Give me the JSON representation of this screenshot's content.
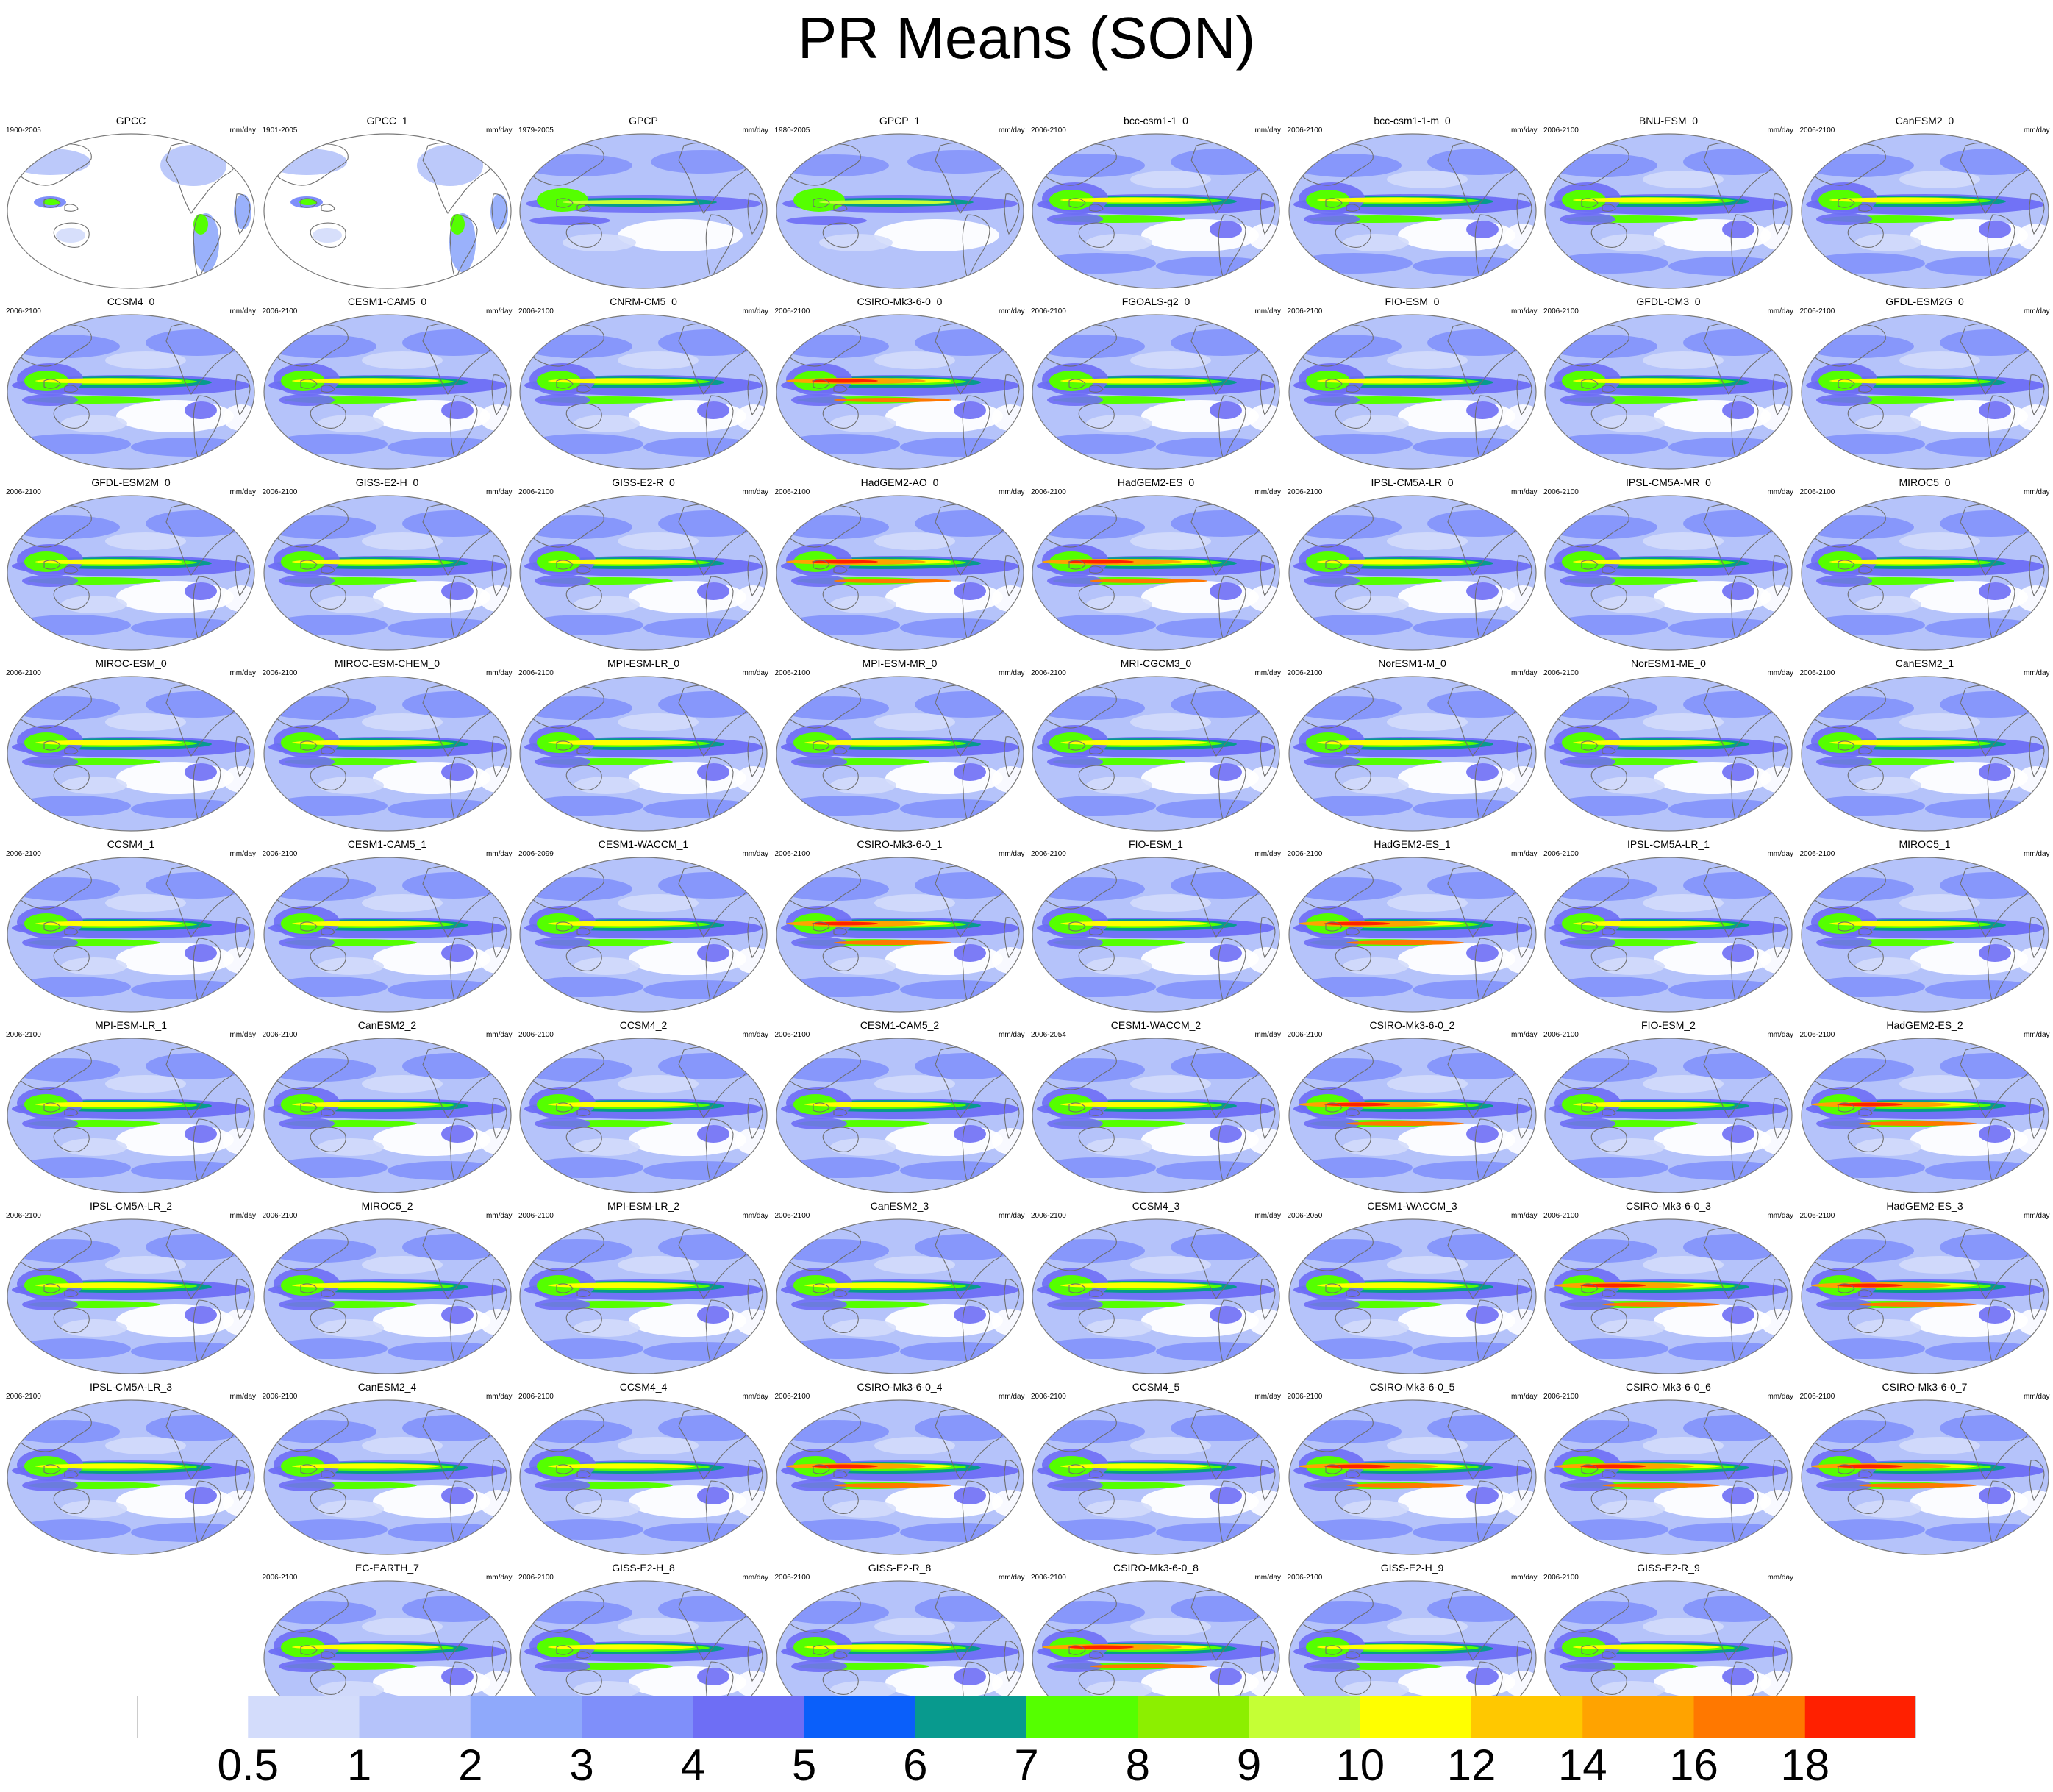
{
  "title": "PR Means (SON)",
  "units": "mm/day",
  "colors": {
    "ocean_base": "#bfcdfb",
    "coast": "#6e6e6e",
    "outline": "#7a7a7a"
  },
  "panels": [
    {
      "name": "GPCC",
      "years": "1900-2005",
      "style": "obs_land"
    },
    {
      "name": "GPCC_1",
      "years": "1901-2005",
      "style": "obs_land"
    },
    {
      "name": "GPCP",
      "years": "1979-2005",
      "style": "obs"
    },
    {
      "name": "GPCP_1",
      "years": "1980-2005",
      "style": "obs"
    },
    {
      "name": "bcc-csm1-1_0",
      "years": "2006-2100",
      "style": "model"
    },
    {
      "name": "bcc-csm1-1-m_0",
      "years": "2006-2100",
      "style": "model"
    },
    {
      "name": "BNU-ESM_0",
      "years": "2006-2100",
      "style": "model"
    },
    {
      "name": "CanESM2_0",
      "years": "2006-2100",
      "style": "model"
    },
    {
      "name": "CCSM4_0",
      "years": "2006-2100",
      "style": "model"
    },
    {
      "name": "CESM1-CAM5_0",
      "years": "2006-2100",
      "style": "model"
    },
    {
      "name": "CNRM-CM5_0",
      "years": "2006-2100",
      "style": "model"
    },
    {
      "name": "CSIRO-Mk3-6-0_0",
      "years": "2006-2100",
      "style": "wet"
    },
    {
      "name": "FGOALS-g2_0",
      "years": "2006-2100",
      "style": "model"
    },
    {
      "name": "FIO-ESM_0",
      "years": "2006-2100",
      "style": "model"
    },
    {
      "name": "GFDL-CM3_0",
      "years": "2006-2100",
      "style": "model"
    },
    {
      "name": "GFDL-ESM2G_0",
      "years": "2006-2100",
      "style": "model"
    },
    {
      "name": "GFDL-ESM2M_0",
      "years": "2006-2100",
      "style": "model"
    },
    {
      "name": "GISS-E2-H_0",
      "years": "2006-2100",
      "style": "model"
    },
    {
      "name": "GISS-E2-R_0",
      "years": "2006-2100",
      "style": "model"
    },
    {
      "name": "HadGEM2-AO_0",
      "years": "2006-2100",
      "style": "wet"
    },
    {
      "name": "HadGEM2-ES_0",
      "years": "2006-2100",
      "style": "wet"
    },
    {
      "name": "IPSL-CM5A-LR_0",
      "years": "2006-2100",
      "style": "model"
    },
    {
      "name": "IPSL-CM5A-MR_0",
      "years": "2006-2100",
      "style": "model"
    },
    {
      "name": "MIROC5_0",
      "years": "2006-2100",
      "style": "model"
    },
    {
      "name": "MIROC-ESM_0",
      "years": "2006-2100",
      "style": "model"
    },
    {
      "name": "MIROC-ESM-CHEM_0",
      "years": "2006-2100",
      "style": "model"
    },
    {
      "name": "MPI-ESM-LR_0",
      "years": "2006-2100",
      "style": "model"
    },
    {
      "name": "MPI-ESM-MR_0",
      "years": "2006-2100",
      "style": "model"
    },
    {
      "name": "MRI-CGCM3_0",
      "years": "2006-2100",
      "style": "model"
    },
    {
      "name": "NorESM1-M_0",
      "years": "2006-2100",
      "style": "model"
    },
    {
      "name": "NorESM1-ME_0",
      "years": "2006-2100",
      "style": "model"
    },
    {
      "name": "CanESM2_1",
      "years": "2006-2100",
      "style": "model"
    },
    {
      "name": "CCSM4_1",
      "years": "2006-2100",
      "style": "model"
    },
    {
      "name": "CESM1-CAM5_1",
      "years": "2006-2100",
      "style": "model"
    },
    {
      "name": "CESM1-WACCM_1",
      "years": "2006-2099",
      "style": "model"
    },
    {
      "name": "CSIRO-Mk3-6-0_1",
      "years": "2006-2100",
      "style": "wet"
    },
    {
      "name": "FIO-ESM_1",
      "years": "2006-2100",
      "style": "model"
    },
    {
      "name": "HadGEM2-ES_1",
      "years": "2006-2100",
      "style": "wet"
    },
    {
      "name": "IPSL-CM5A-LR_1",
      "years": "2006-2100",
      "style": "model"
    },
    {
      "name": "MIROC5_1",
      "years": "2006-2100",
      "style": "model"
    },
    {
      "name": "MPI-ESM-LR_1",
      "years": "2006-2100",
      "style": "model"
    },
    {
      "name": "CanESM2_2",
      "years": "2006-2100",
      "style": "model"
    },
    {
      "name": "CCSM4_2",
      "years": "2006-2100",
      "style": "model"
    },
    {
      "name": "CESM1-CAM5_2",
      "years": "2006-2100",
      "style": "model"
    },
    {
      "name": "CESM1-WACCM_2",
      "years": "2006-2054",
      "style": "model"
    },
    {
      "name": "CSIRO-Mk3-6-0_2",
      "years": "2006-2100",
      "style": "wet"
    },
    {
      "name": "FIO-ESM_2",
      "years": "2006-2100",
      "style": "model"
    },
    {
      "name": "HadGEM2-ES_2",
      "years": "2006-2100",
      "style": "wet"
    },
    {
      "name": "IPSL-CM5A-LR_2",
      "years": "2006-2100",
      "style": "model"
    },
    {
      "name": "MIROC5_2",
      "years": "2006-2100",
      "style": "model"
    },
    {
      "name": "MPI-ESM-LR_2",
      "years": "2006-2100",
      "style": "model"
    },
    {
      "name": "CanESM2_3",
      "years": "2006-2100",
      "style": "model"
    },
    {
      "name": "CCSM4_3",
      "years": "2006-2100",
      "style": "model"
    },
    {
      "name": "CESM1-WACCM_3",
      "years": "2006-2050",
      "style": "model"
    },
    {
      "name": "CSIRO-Mk3-6-0_3",
      "years": "2006-2100",
      "style": "wet"
    },
    {
      "name": "HadGEM2-ES_3",
      "years": "2006-2100",
      "style": "wet"
    },
    {
      "name": "IPSL-CM5A-LR_3",
      "years": "2006-2100",
      "style": "model"
    },
    {
      "name": "CanESM2_4",
      "years": "2006-2100",
      "style": "model"
    },
    {
      "name": "CCSM4_4",
      "years": "2006-2100",
      "style": "model"
    },
    {
      "name": "CSIRO-Mk3-6-0_4",
      "years": "2006-2100",
      "style": "wet"
    },
    {
      "name": "CCSM4_5",
      "years": "2006-2100",
      "style": "model"
    },
    {
      "name": "CSIRO-Mk3-6-0_5",
      "years": "2006-2100",
      "style": "wet"
    },
    {
      "name": "CSIRO-Mk3-6-0_6",
      "years": "2006-2100",
      "style": "wet"
    },
    {
      "name": "CSIRO-Mk3-6-0_7",
      "years": "2006-2100",
      "style": "wet"
    },
    {
      "name": "EC-EARTH_7",
      "years": "2006-2100",
      "style": "model"
    },
    {
      "name": "GISS-E2-H_8",
      "years": "2006-2100",
      "style": "model"
    },
    {
      "name": "GISS-E2-R_8",
      "years": "2006-2100",
      "style": "model"
    },
    {
      "name": "CSIRO-Mk3-6-0_8",
      "years": "2006-2100",
      "style": "wet"
    },
    {
      "name": "GISS-E2-H_9",
      "years": "2006-2100",
      "style": "model"
    },
    {
      "name": "GISS-E2-R_9",
      "years": "2006-2100",
      "style": "model"
    }
  ],
  "colorbar": {
    "colors": [
      "#ffffff",
      "#d3dcfb",
      "#b5c3fa",
      "#8fa9fb",
      "#7f8ffa",
      "#6e6ef5",
      "#0a5ffa",
      "#089a8e",
      "#55ff00",
      "#8cef00",
      "#c5ff35",
      "#ffff00",
      "#ffc800",
      "#ffa300",
      "#ff7800",
      "#ff2000"
    ],
    "labels": [
      "0.5",
      "1",
      "2",
      "3",
      "4",
      "5",
      "6",
      "7",
      "8",
      "9",
      "10",
      "12",
      "14",
      "16",
      "18"
    ]
  }
}
